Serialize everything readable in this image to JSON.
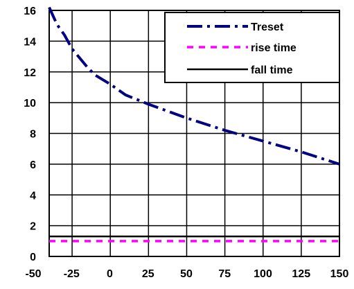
{
  "chart_data": {
    "type": "line",
    "title": "",
    "xlabel": "",
    "ylabel": "",
    "xlim": [
      -40,
      150
    ],
    "ylim": [
      0,
      16
    ],
    "x_ticks": [
      -50,
      -25,
      0,
      25,
      50,
      75,
      100,
      125,
      150
    ],
    "y_ticks": [
      0,
      2,
      4,
      6,
      8,
      10,
      12,
      14,
      16
    ],
    "x_tick_labels": [
      "-50",
      "-25",
      "0",
      "25",
      "50",
      "75",
      "100",
      "125",
      "150"
    ],
    "y_tick_labels": [
      "0",
      "2",
      "4",
      "6",
      "8",
      "10",
      "12",
      "14",
      "16"
    ],
    "grid": true,
    "legend_position": "top-right",
    "series": [
      {
        "name": "Treset",
        "color": "#000080",
        "style": "dash-dot",
        "points": [
          [
            -40,
            16.2
          ],
          [
            -35,
            15.1
          ],
          [
            -30,
            14.4
          ],
          [
            -25,
            13.5
          ],
          [
            -15,
            12.3
          ],
          [
            -10,
            11.8
          ],
          [
            0,
            11.2
          ],
          [
            10,
            10.5
          ],
          [
            25,
            9.9
          ],
          [
            50,
            9.0
          ],
          [
            75,
            8.2
          ],
          [
            100,
            7.5
          ],
          [
            125,
            6.8
          ],
          [
            150,
            6.0
          ]
        ]
      },
      {
        "name": "rise time",
        "color": "#ff00ff",
        "style": "dotted",
        "points": [
          [
            -40,
            1.0
          ],
          [
            -25,
            1.0
          ],
          [
            0,
            1.0
          ],
          [
            25,
            1.0
          ],
          [
            50,
            1.0
          ],
          [
            75,
            1.0
          ],
          [
            100,
            1.0
          ],
          [
            125,
            1.0
          ],
          [
            150,
            1.0
          ]
        ]
      },
      {
        "name": "fall time",
        "color": "#000000",
        "style": "solid",
        "points": [
          [
            -40,
            1.3
          ],
          [
            -25,
            1.3
          ],
          [
            0,
            1.3
          ],
          [
            25,
            1.3
          ],
          [
            50,
            1.3
          ],
          [
            75,
            1.3
          ],
          [
            100,
            1.3
          ],
          [
            125,
            1.3
          ],
          [
            150,
            1.3
          ]
        ]
      }
    ]
  }
}
